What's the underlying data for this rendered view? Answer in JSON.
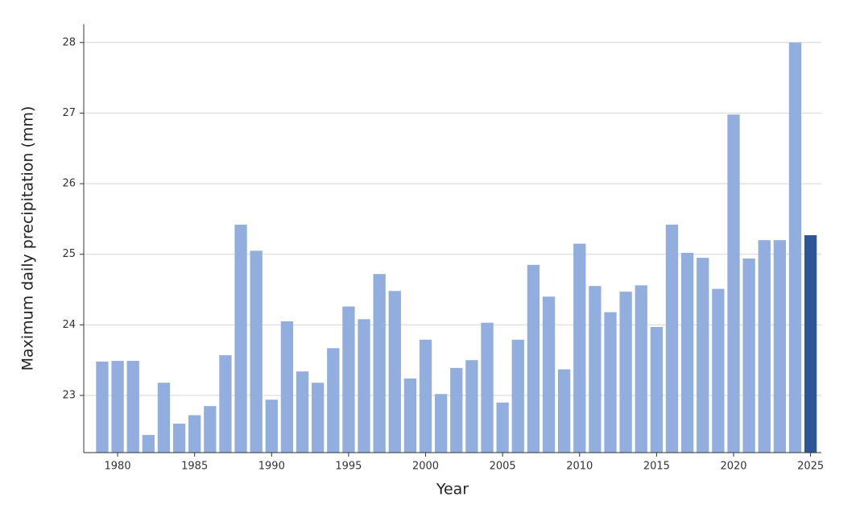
{
  "chart_data": {
    "type": "bar",
    "x_label": "Year",
    "y_label": "Maximum daily precipitation (mm)",
    "x": [
      1979,
      1980,
      1981,
      1982,
      1983,
      1984,
      1985,
      1986,
      1987,
      1988,
      1989,
      1990,
      1991,
      1992,
      1993,
      1994,
      1995,
      1996,
      1997,
      1998,
      1999,
      2000,
      2001,
      2002,
      2003,
      2004,
      2005,
      2006,
      2007,
      2008,
      2009,
      2010,
      2011,
      2012,
      2013,
      2014,
      2015,
      2016,
      2017,
      2018,
      2019,
      2020,
      2021,
      2022,
      2023,
      2024,
      2025
    ],
    "values": [
      23.48,
      23.49,
      23.49,
      22.44,
      23.18,
      22.6,
      22.72,
      22.85,
      23.57,
      25.42,
      25.05,
      22.94,
      24.05,
      23.34,
      23.18,
      23.67,
      24.26,
      24.08,
      24.72,
      24.48,
      23.24,
      23.79,
      23.02,
      23.39,
      23.5,
      24.03,
      22.9,
      23.79,
      24.85,
      24.4,
      23.37,
      25.15,
      24.55,
      24.18,
      24.47,
      24.56,
      23.97,
      25.42,
      25.02,
      24.95,
      24.51,
      26.98,
      24.94,
      25.2,
      25.2,
      28.0,
      25.27
    ],
    "colors": [
      "#92aede",
      "#92aede",
      "#92aede",
      "#92aede",
      "#92aede",
      "#92aede",
      "#92aede",
      "#92aede",
      "#92aede",
      "#92aede",
      "#92aede",
      "#92aede",
      "#92aede",
      "#92aede",
      "#92aede",
      "#92aede",
      "#92aede",
      "#92aede",
      "#92aede",
      "#92aede",
      "#92aede",
      "#92aede",
      "#92aede",
      "#92aede",
      "#92aede",
      "#92aede",
      "#92aede",
      "#92aede",
      "#92aede",
      "#92aede",
      "#92aede",
      "#92aede",
      "#92aede",
      "#92aede",
      "#92aede",
      "#92aede",
      "#92aede",
      "#92aede",
      "#92aede",
      "#92aede",
      "#92aede",
      "#92aede",
      "#92aede",
      "#92aede",
      "#92aede",
      "#92aede",
      "#2e5597"
    ],
    "xlim": [
      1977.8,
      2025.7
    ],
    "ylim": [
      22.19,
      28.26
    ],
    "xticks": [
      1980,
      1985,
      1990,
      1995,
      2000,
      2005,
      2010,
      2015,
      2020,
      2025
    ],
    "yticks": [
      23,
      24,
      25,
      26,
      27,
      28
    ],
    "grid": true
  }
}
